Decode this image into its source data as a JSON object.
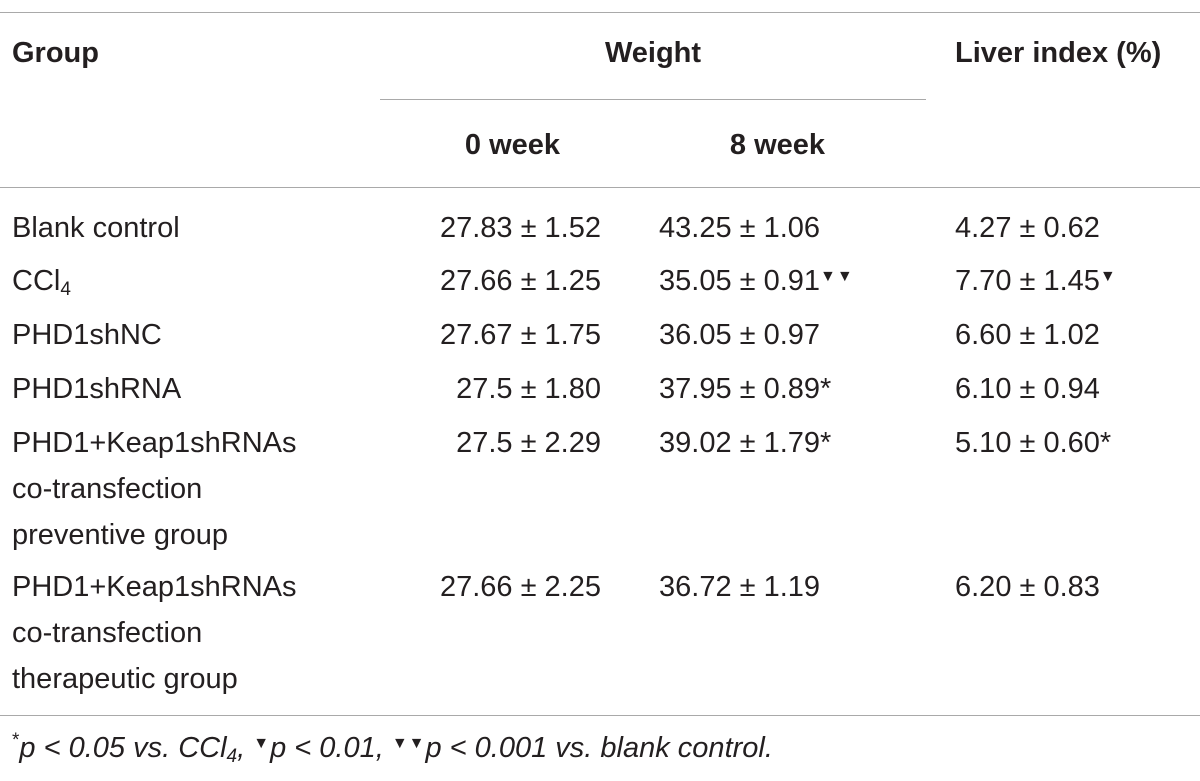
{
  "table": {
    "headers": {
      "group": "Group",
      "weight": "Weight",
      "liver_index": "Liver index (%)",
      "week0": "0 week",
      "week8": "8 week"
    },
    "rows": [
      {
        "group_lines": [
          "Blank control"
        ],
        "group_sub": "",
        "w0": "27.83 ± 1.52",
        "w8": "43.25 ± 1.06",
        "w8_mark": "",
        "liver": "4.27 ± 0.62",
        "liver_mark": ""
      },
      {
        "group_lines": [
          "CCl"
        ],
        "group_sub": "4",
        "w0": "27.66 ± 1.25",
        "w8": "35.05 ± 0.91",
        "w8_mark": "▼▼",
        "liver": "7.70 ± 1.45",
        "liver_mark": "▼"
      },
      {
        "group_lines": [
          "PHD1shNC"
        ],
        "group_sub": "",
        "w0": "27.67 ± 1.75",
        "w8": "36.05 ± 0.97",
        "w8_mark": "",
        "liver": "6.60 ± 1.02",
        "liver_mark": ""
      },
      {
        "group_lines": [
          "PHD1shRNA"
        ],
        "group_sub": "",
        "w0": "27.5 ± 1.80",
        "w8": "37.95 ± 0.89*",
        "w8_mark": "",
        "liver": "6.10 ± 0.94",
        "liver_mark": ""
      },
      {
        "group_lines": [
          "PHD1+Keap1shRNAs",
          "co-transfection",
          "preventive group"
        ],
        "group_sub": "",
        "w0": "27.5 ± 2.29",
        "w8": "39.02 ± 1.79*",
        "w8_mark": "",
        "liver": "5.10 ± 0.60*",
        "liver_mark": ""
      },
      {
        "group_lines": [
          "PHD1+Keap1shRNAs",
          "co-transfection",
          "therapeutic group"
        ],
        "group_sub": "",
        "w0": "27.66 ± 2.25",
        "w8": "36.72 ± 1.19",
        "w8_mark": "",
        "liver": "6.20 ± 0.83",
        "liver_mark": ""
      }
    ]
  },
  "footnote": {
    "ast": "*",
    "part1": "p < 0.05 vs. CCl",
    "sub": "4",
    "part2": ", ",
    "mark1": "▼",
    "part3": "p < 0.01, ",
    "mark2": "▼▼",
    "part4": "p < 0.001 vs. blank control."
  }
}
